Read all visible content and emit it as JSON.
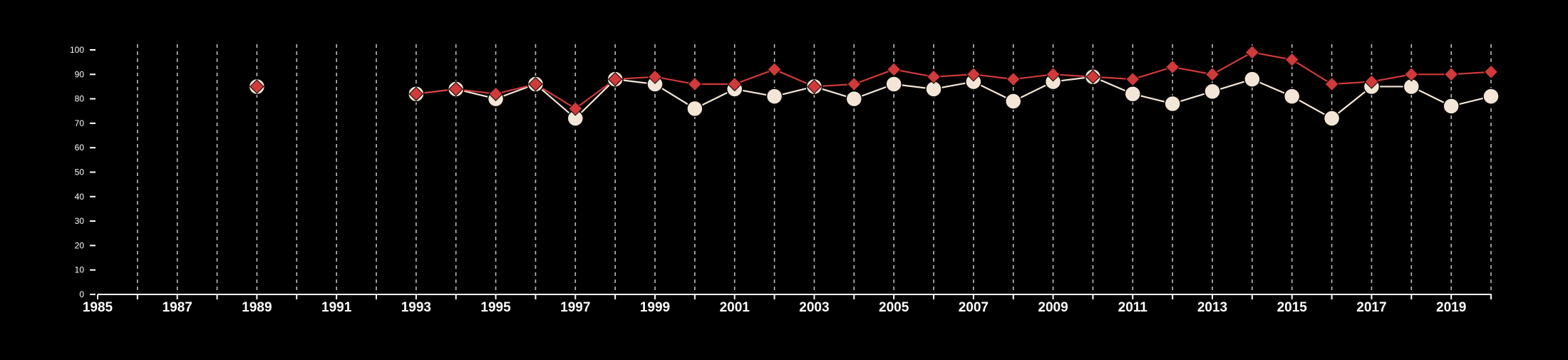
{
  "chart_data": {
    "type": "line",
    "title": "",
    "xlabel": "",
    "ylabel": "",
    "xlim": [
      1985,
      2020
    ],
    "ylim": [
      0,
      100
    ],
    "x_ticks": [
      1985,
      1987,
      1989,
      1991,
      1993,
      1995,
      1997,
      1999,
      2001,
      2003,
      2005,
      2007,
      2009,
      2011,
      2013,
      2015,
      2017,
      2019
    ],
    "y_ticks": [
      0,
      10,
      20,
      30,
      40,
      50,
      60,
      70,
      80,
      90,
      100
    ],
    "grid": "vertical dashed at every year",
    "legend": "none",
    "colors": {
      "background": "#000000",
      "axis": "#ffffff",
      "grid": "#bdbdbd",
      "series_red": "#d03a3a",
      "series_cream": "#f3e6d6"
    },
    "series": [
      {
        "marker": "diamond",
        "color": "#d03a3a",
        "points": [
          {
            "x": 1989,
            "y": 85
          },
          {
            "x": 1993,
            "y": 82
          },
          {
            "x": 1994,
            "y": 84
          },
          {
            "x": 1995,
            "y": 82
          },
          {
            "x": 1996,
            "y": 86
          },
          {
            "x": 1997,
            "y": 76
          },
          {
            "x": 1998,
            "y": 88
          },
          {
            "x": 1999,
            "y": 89
          },
          {
            "x": 2000,
            "y": 86
          },
          {
            "x": 2001,
            "y": 86
          },
          {
            "x": 2002,
            "y": 92
          },
          {
            "x": 2003,
            "y": 85
          },
          {
            "x": 2004,
            "y": 86
          },
          {
            "x": 2005,
            "y": 92
          },
          {
            "x": 2006,
            "y": 89
          },
          {
            "x": 2007,
            "y": 90
          },
          {
            "x": 2008,
            "y": 88
          },
          {
            "x": 2009,
            "y": 90
          },
          {
            "x": 2010,
            "y": 89
          },
          {
            "x": 2011,
            "y": 88
          },
          {
            "x": 2012,
            "y": 93
          },
          {
            "x": 2013,
            "y": 90
          },
          {
            "x": 2014,
            "y": 99
          },
          {
            "x": 2015,
            "y": 96
          },
          {
            "x": 2016,
            "y": 86
          },
          {
            "x": 2017,
            "y": 87
          },
          {
            "x": 2018,
            "y": 90
          },
          {
            "x": 2019,
            "y": 90
          },
          {
            "x": 2020,
            "y": 91
          }
        ]
      },
      {
        "marker": "circle",
        "color": "#f3e6d6",
        "points": [
          {
            "x": 1989,
            "y": 85
          },
          {
            "x": 1993,
            "y": 82
          },
          {
            "x": 1994,
            "y": 84
          },
          {
            "x": 1995,
            "y": 80
          },
          {
            "x": 1996,
            "y": 86
          },
          {
            "x": 1997,
            "y": 72
          },
          {
            "x": 1998,
            "y": 88
          },
          {
            "x": 1999,
            "y": 86
          },
          {
            "x": 2000,
            "y": 76
          },
          {
            "x": 2001,
            "y": 84
          },
          {
            "x": 2002,
            "y": 81
          },
          {
            "x": 2003,
            "y": 85
          },
          {
            "x": 2004,
            "y": 80
          },
          {
            "x": 2005,
            "y": 86
          },
          {
            "x": 2006,
            "y": 84
          },
          {
            "x": 2007,
            "y": 87
          },
          {
            "x": 2008,
            "y": 79
          },
          {
            "x": 2009,
            "y": 87
          },
          {
            "x": 2010,
            "y": 89
          },
          {
            "x": 2011,
            "y": 82
          },
          {
            "x": 2012,
            "y": 78
          },
          {
            "x": 2013,
            "y": 83
          },
          {
            "x": 2014,
            "y": 88
          },
          {
            "x": 2015,
            "y": 81
          },
          {
            "x": 2016,
            "y": 72
          },
          {
            "x": 2017,
            "y": 85
          },
          {
            "x": 2018,
            "y": 85
          },
          {
            "x": 2019,
            "y": 77
          },
          {
            "x": 2020,
            "y": 81
          }
        ]
      }
    ]
  }
}
